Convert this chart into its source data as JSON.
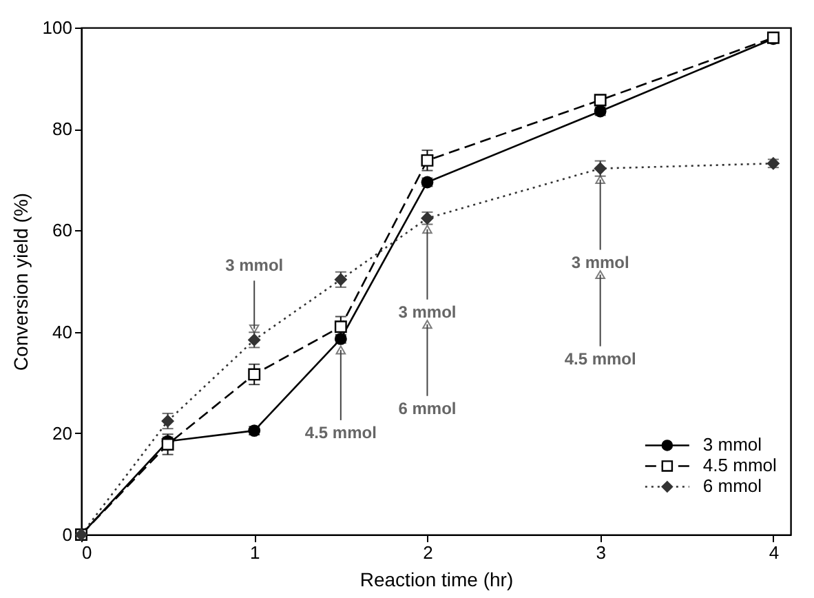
{
  "chart_data": {
    "type": "line",
    "xlabel": "Reaction time (hr)",
    "ylabel": "Conversion yield (%)",
    "x": [
      0,
      0.5,
      1,
      1.5,
      2,
      3,
      4
    ],
    "xlim": [
      0,
      4.1
    ],
    "xticks": [
      0,
      1,
      2,
      3,
      4
    ],
    "ylim": [
      0,
      100
    ],
    "yticks": [
      0,
      20,
      40,
      60,
      80,
      100
    ],
    "legend": "bottom right",
    "series": [
      {
        "name": "3 mmol",
        "color": "#000000",
        "marker": "circle",
        "line_style": "solid",
        "values": [
          0,
          18.4,
          20.5,
          38.6,
          69.5,
          83.5,
          97.8
        ],
        "errors": [
          null,
          0.8,
          0.8,
          0.8,
          0.8,
          0.8,
          0.8
        ]
      },
      {
        "name": "4.5 mmol",
        "color": "#000000",
        "marker": "square",
        "line_style": "dashed",
        "values": [
          0,
          17.8,
          31.6,
          41,
          73.8,
          85.7,
          98
        ],
        "errors": [
          null,
          2,
          2,
          2,
          2,
          0.8,
          0.8
        ]
      },
      {
        "name": "6 mmol",
        "color": "#333333",
        "marker": "diamond",
        "line_style": "dotted",
        "values": [
          0,
          22.4,
          38.4,
          50.3,
          62.4,
          72.2,
          73.2
        ],
        "errors": [
          null,
          1.5,
          1.5,
          1.5,
          1.2,
          1.5,
          0.8
        ]
      }
    ],
    "annotations": [
      {
        "text": "3 mmol",
        "x": 3,
        "y": 72.2
      },
      {
        "text": "3 mmol",
        "x": 1,
        "y": 38.4
      },
      {
        "text": "3 mmol",
        "x": 2,
        "y": 62.4
      },
      "4.5 mmol",
      "6 mmol",
      {
        "text": "4.5 mmol",
        "x": 1.5,
        "y": 38.6
      }
    ]
  }
}
